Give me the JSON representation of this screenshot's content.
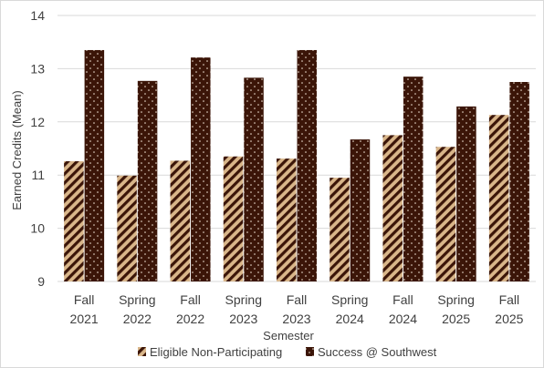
{
  "chart_data": {
    "type": "bar",
    "xlabel": "Semester",
    "ylabel": "Earned Credits (Mean)",
    "ylim": [
      9,
      14
    ],
    "yticks": [
      "9",
      "10",
      "11",
      "12",
      "13",
      "14"
    ],
    "grid": true,
    "legend_position": "bottom",
    "categories": [
      [
        "Fall",
        "2021"
      ],
      [
        "Spring",
        "2022"
      ],
      [
        "Fall",
        "2022"
      ],
      [
        "Spring",
        "2023"
      ],
      [
        "Fall",
        "2023"
      ],
      [
        "Spring",
        "2024"
      ],
      [
        "Fall",
        "2024"
      ],
      [
        "Spring",
        "2025"
      ],
      [
        "Fall",
        "2025"
      ]
    ],
    "series": [
      {
        "name": "Eligible Non-Participating",
        "pattern": "diagonal-stripes",
        "color": "#d9b68a",
        "stroke": "#3b1508",
        "values": [
          11.26,
          10.99,
          11.27,
          11.35,
          11.31,
          10.95,
          11.75,
          11.53,
          12.13
        ]
      },
      {
        "name": "Success @ Southwest",
        "pattern": "dots",
        "color": "#3b1508",
        "values": [
          13.35,
          12.77,
          13.21,
          12.83,
          13.35,
          11.67,
          12.85,
          12.29,
          12.75
        ]
      }
    ]
  }
}
